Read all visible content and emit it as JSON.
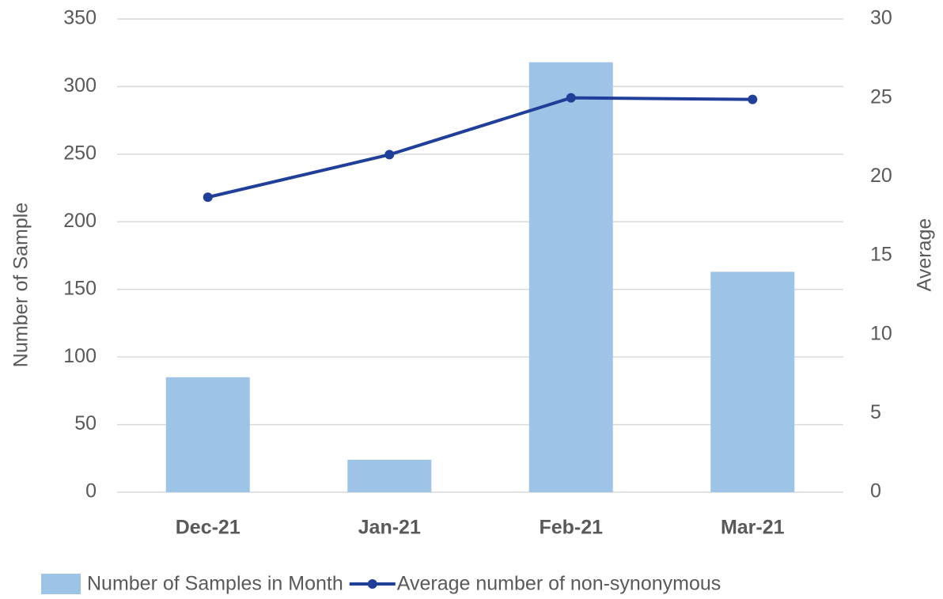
{
  "chart_data": {
    "type": "bar",
    "categories": [
      "Dec-21",
      "Jan-21",
      "Feb-21",
      "Mar-21"
    ],
    "series": [
      {
        "name": "Number of Samples in Month",
        "type": "bar",
        "color": "#9dc3e6",
        "values": [
          85,
          24,
          318,
          163
        ]
      },
      {
        "name": "Average number of non-synonymous",
        "type": "line",
        "axis": "y2",
        "color": "#1f3f99",
        "values": [
          18.7,
          21.4,
          25.0,
          24.9
        ]
      }
    ],
    "ylabel": "Number of Sample",
    "y2label": "Average",
    "ylim": [
      0,
      350
    ],
    "yticks": [
      0,
      50,
      100,
      150,
      200,
      250,
      300,
      350
    ],
    "y2lim": [
      0,
      30
    ],
    "y2ticks": [
      0,
      5,
      10,
      15,
      20,
      25,
      30
    ],
    "grid": true,
    "legend": "bottom"
  }
}
